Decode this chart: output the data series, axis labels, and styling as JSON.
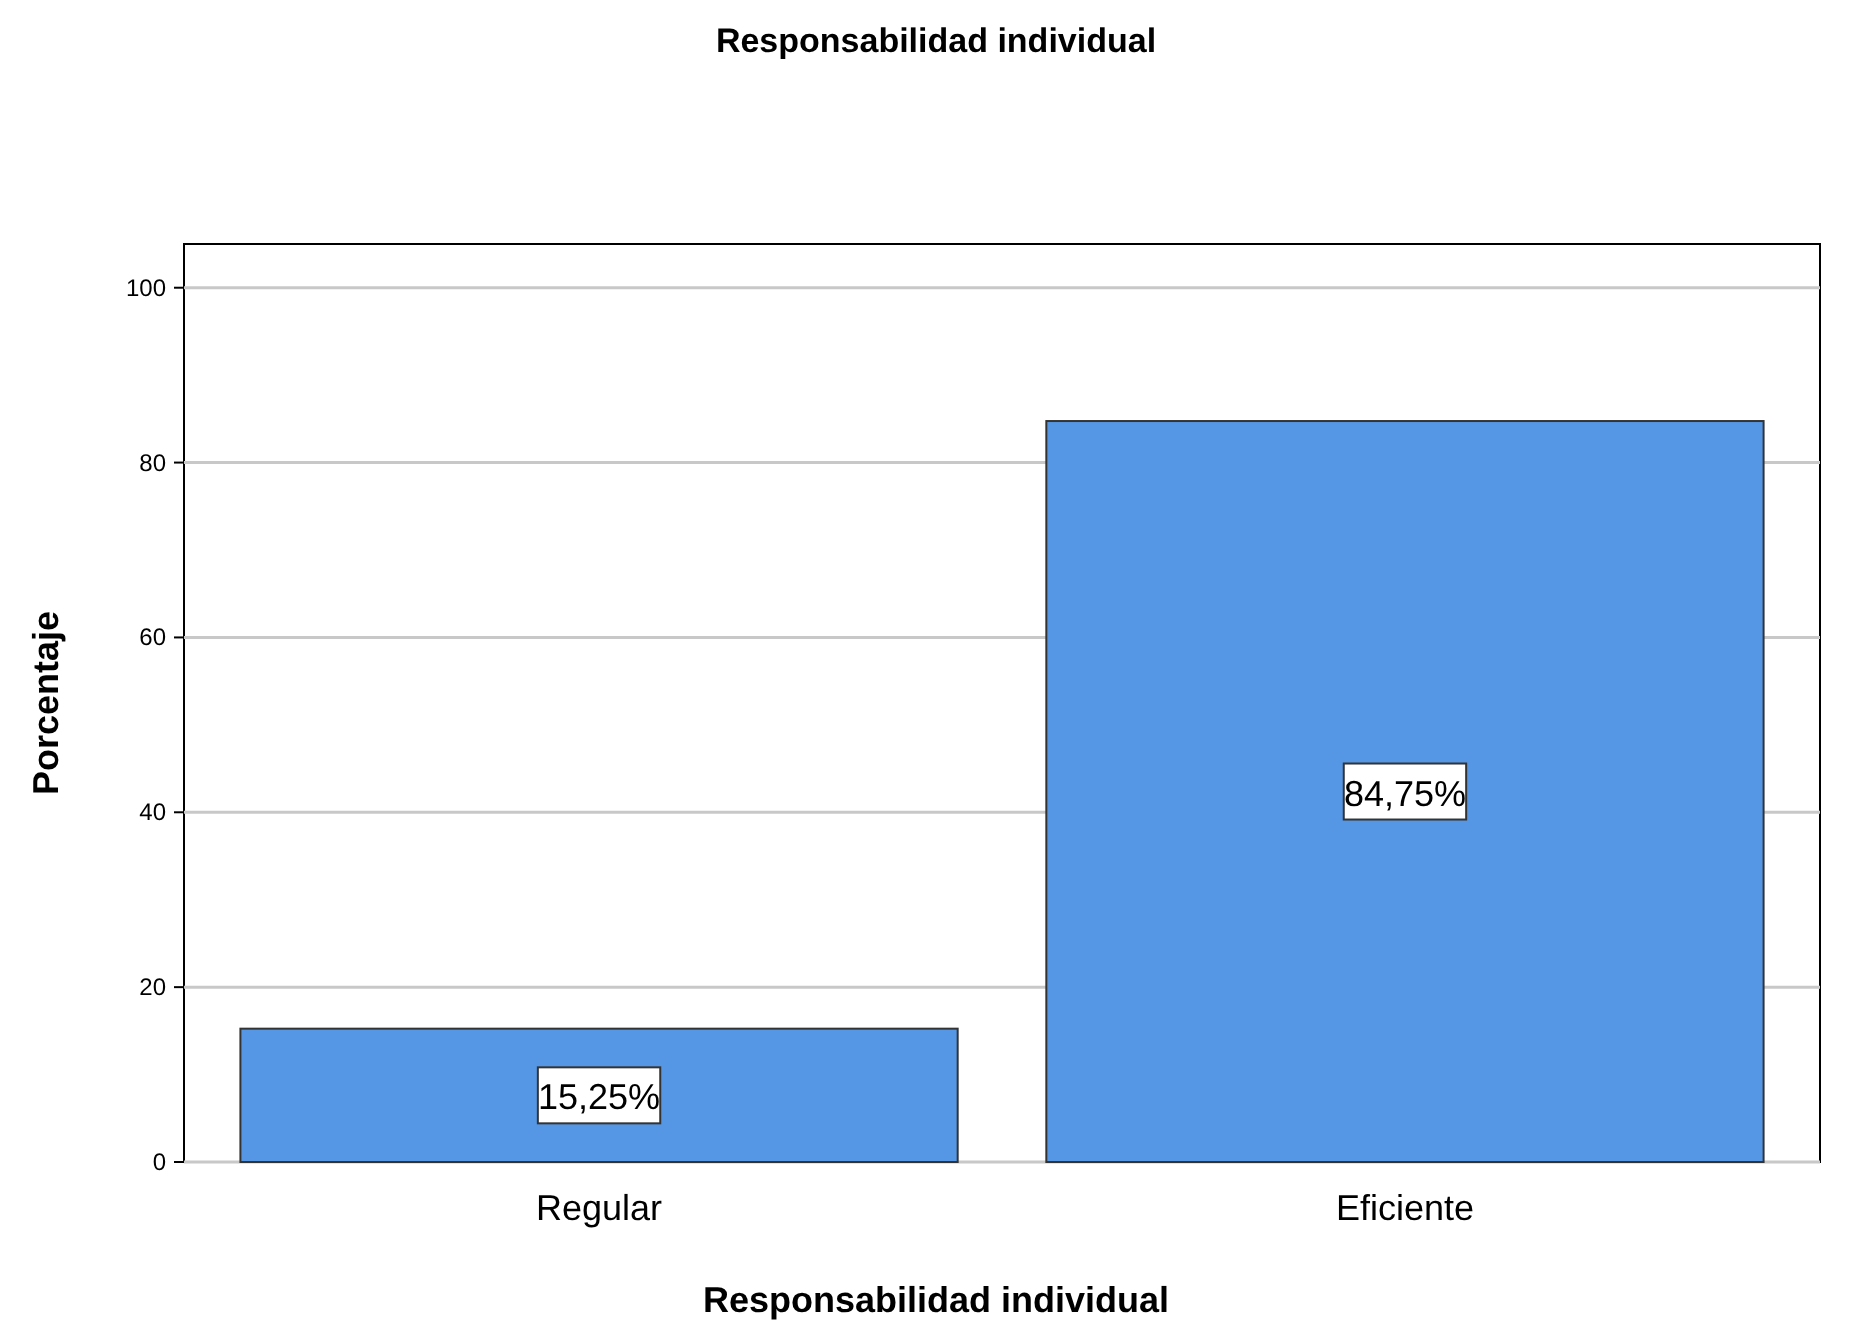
{
  "chart_data": {
    "type": "bar",
    "title": "Responsabilidad individual",
    "xlabel": "Responsabilidad individual",
    "ylabel": "Porcentaje",
    "categories": [
      "Regular",
      "Eficiente"
    ],
    "values": [
      15.25,
      84.75
    ],
    "color": "#5597e5",
    "value_labels": [
      "15,25%",
      "84,75%"
    ],
    "ylim": [
      0,
      105
    ],
    "yticks": [
      0,
      20,
      40,
      60,
      80,
      100
    ],
    "grid": "y"
  }
}
